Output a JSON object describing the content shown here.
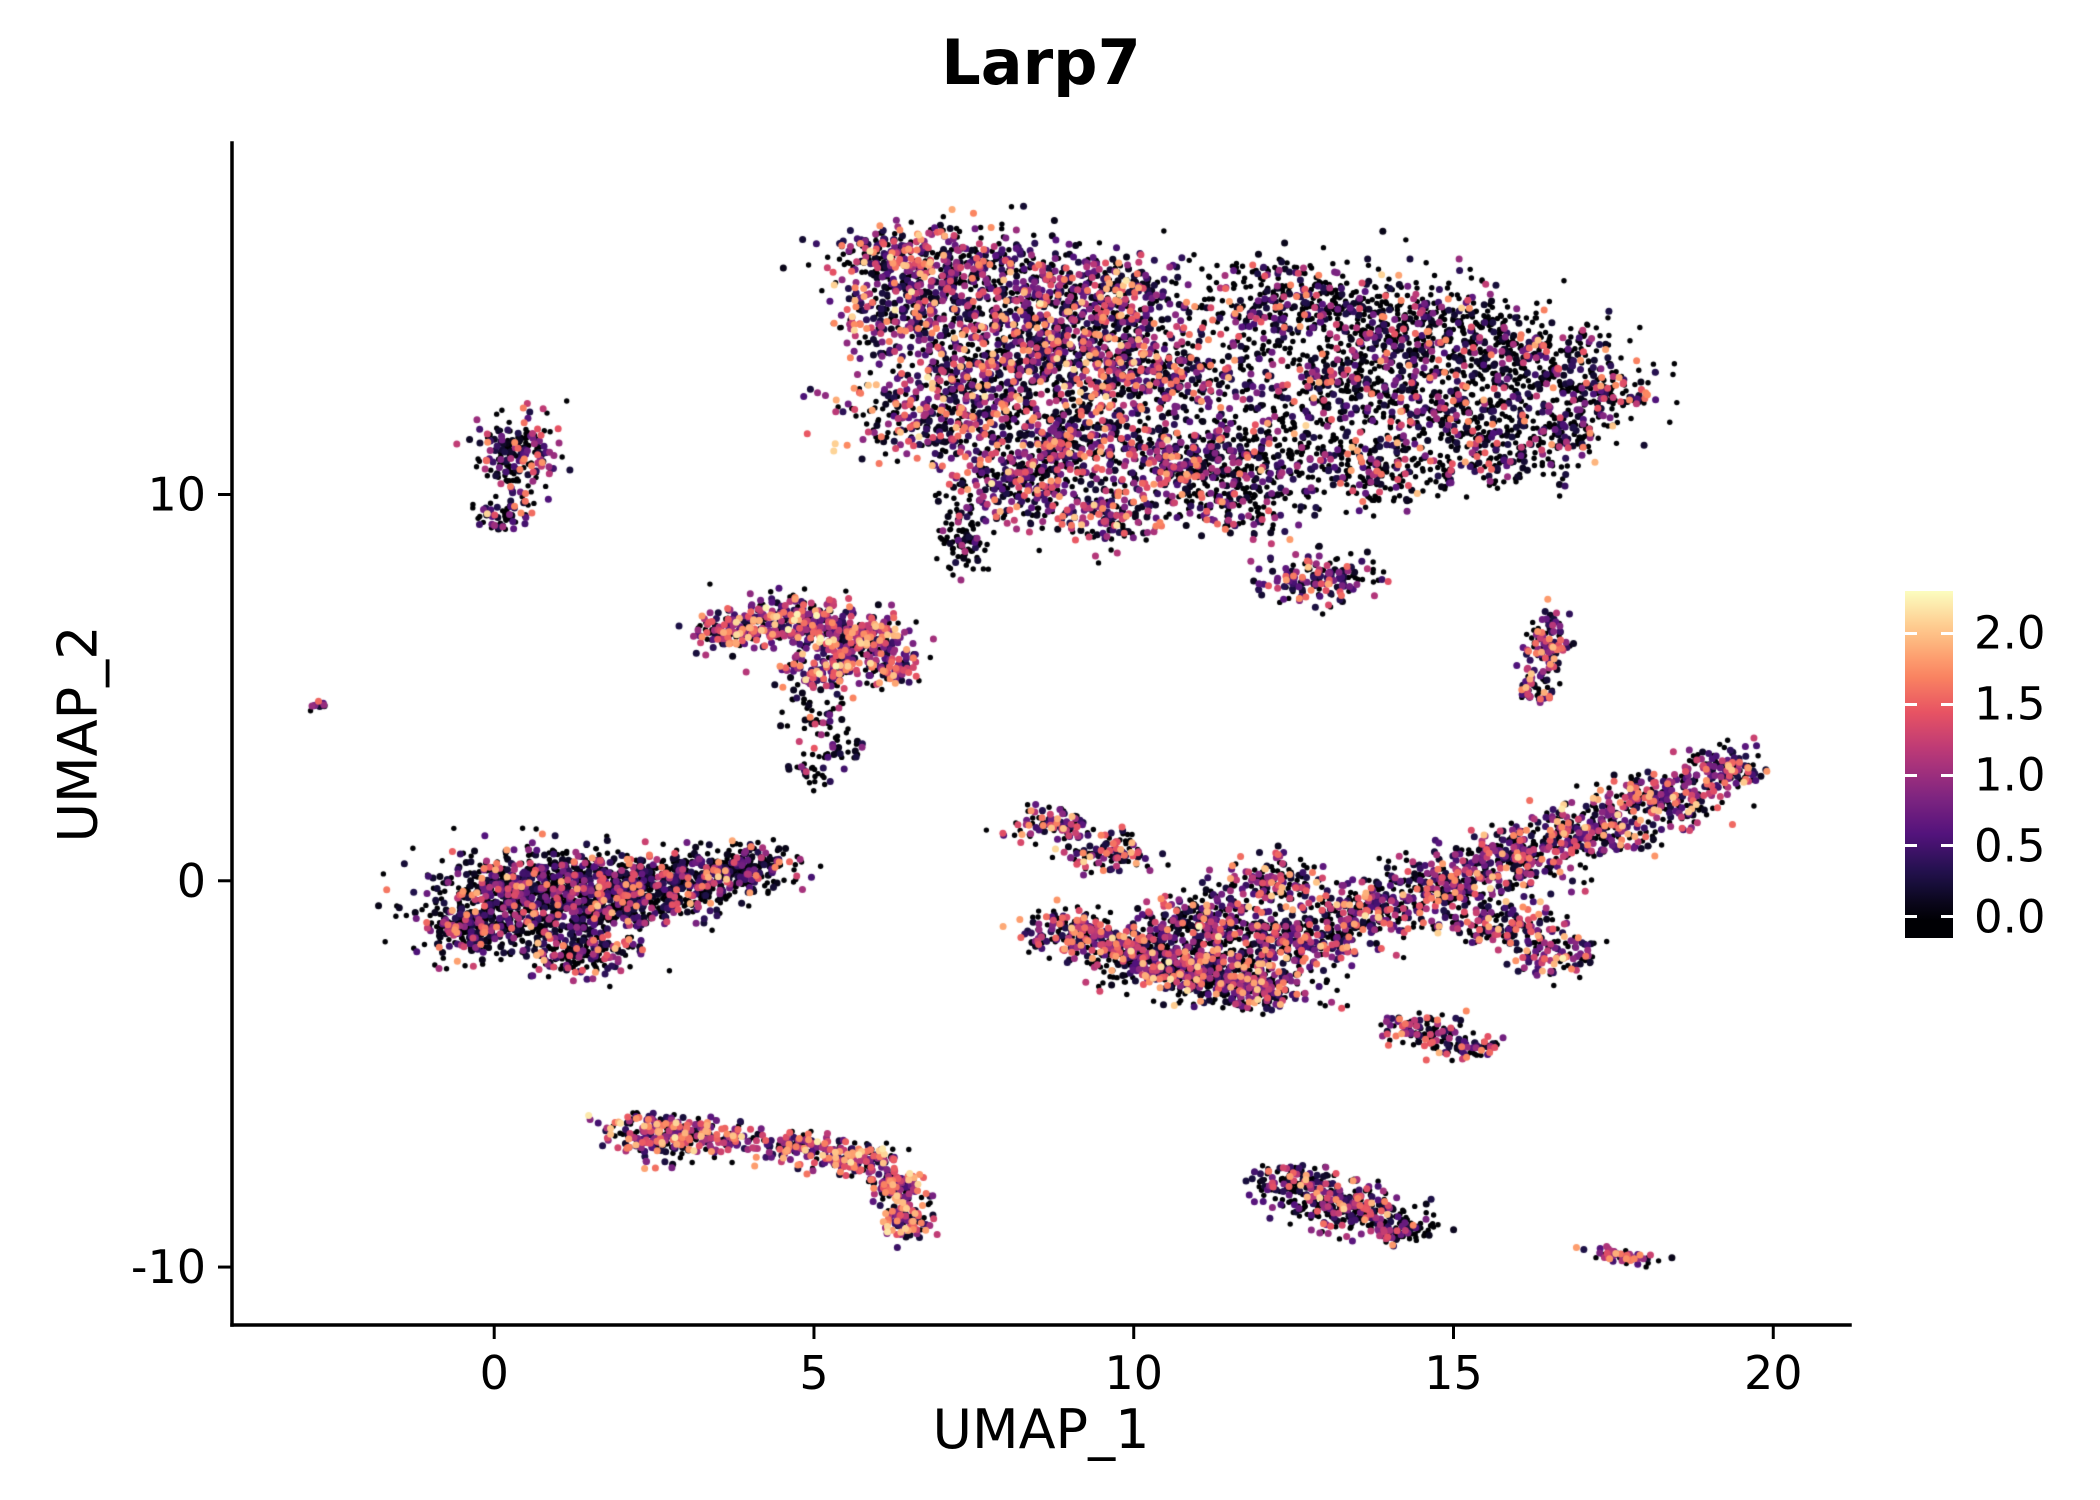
{
  "chart_data": {
    "type": "scatter",
    "title": "Larp7",
    "xlabel": "UMAP_1",
    "ylabel": "UMAP_2",
    "xlim": [
      -4.1,
      21.2
    ],
    "ylim": [
      -11.5,
      19.1
    ],
    "x_ticks": [
      0,
      5,
      10,
      15,
      20
    ],
    "x_tick_labels": [
      "0",
      "5",
      "10",
      "15",
      "20"
    ],
    "y_ticks": [
      10,
      0,
      -10
    ],
    "y_tick_labels": [
      "10",
      "0",
      "-10"
    ],
    "grid": false,
    "background": "#ffffff",
    "axis_color": "#000000",
    "text_color": "#000000",
    "point_radius": {
      "zero": 2.7,
      "expressed": 3.5
    },
    "legend": {
      "position": "right",
      "ticks": [
        2.0,
        1.5,
        1.0,
        0.5,
        0.0
      ],
      "tick_labels": [
        "2.0",
        "1.5",
        "1.0",
        "0.5",
        "0.0"
      ],
      "vmin": -0.15,
      "vmax": 2.3,
      "value_max": 2.3,
      "colormap": "magma",
      "stops": [
        "#000004",
        "#1d1147",
        "#51127c",
        "#822681",
        "#b73779",
        "#e75263",
        "#fc8961",
        "#fec488",
        "#fcfdbf"
      ]
    },
    "clusters": [
      {
        "name": "top-left-dense",
        "p0": 0.36,
        "gamma": 1.6,
        "scale": 1.9,
        "blobs": [
          [
            7.2,
            15.8,
            1.6,
            0.95,
            480
          ],
          [
            9.3,
            15.1,
            1.4,
            1.0,
            420
          ],
          [
            8.3,
            13.6,
            1.7,
            1.2,
            650
          ],
          [
            10.3,
            13.0,
            1.3,
            1.0,
            380
          ],
          [
            7.0,
            12.1,
            1.2,
            1.0,
            360
          ],
          [
            9.0,
            11.3,
            1.3,
            1.0,
            400
          ],
          [
            10.8,
            10.8,
            1.0,
            0.9,
            260
          ],
          [
            8.1,
            10.1,
            0.9,
            0.8,
            220
          ],
          [
            9.6,
            9.4,
            0.8,
            0.65,
            150
          ],
          [
            6.3,
            14.6,
            0.8,
            0.8,
            170
          ],
          [
            6.1,
            16.2,
            0.7,
            0.5,
            120
          ]
        ]
      },
      {
        "name": "top-left-tail",
        "p0": 0.75,
        "gamma": 2.5,
        "scale": 1.2,
        "blobs": [
          [
            7.35,
            8.85,
            0.3,
            0.75,
            90
          ]
        ]
      },
      {
        "name": "top-right-sparse",
        "p0": 0.6,
        "gamma": 2.0,
        "scale": 1.8,
        "blobs": [
          [
            12.6,
            14.9,
            1.6,
            1.1,
            420
          ],
          [
            14.5,
            14.3,
            1.6,
            1.0,
            400
          ],
          [
            16.3,
            13.4,
            1.3,
            0.9,
            280
          ],
          [
            17.4,
            12.6,
            0.7,
            0.55,
            120
          ],
          [
            13.3,
            12.9,
            1.3,
            1.0,
            300
          ],
          [
            15.1,
            12.1,
            1.3,
            0.9,
            260
          ],
          [
            12.2,
            11.1,
            1.2,
            0.9,
            240
          ],
          [
            13.9,
            10.6,
            1.1,
            0.8,
            210
          ],
          [
            11.6,
            9.7,
            0.9,
            0.7,
            150
          ],
          [
            15.9,
            11.0,
            0.9,
            0.7,
            140
          ],
          [
            16.9,
            11.6,
            0.6,
            0.5,
            80
          ]
        ]
      },
      {
        "name": "mid-appendage",
        "p0": 0.45,
        "gamma": 1.6,
        "scale": 1.9,
        "blobs": [
          [
            12.9,
            7.85,
            0.75,
            0.55,
            160
          ]
        ]
      },
      {
        "name": "left-small",
        "p0": 0.4,
        "gamma": 1.7,
        "scale": 1.8,
        "blobs": [
          [
            0.35,
            11.0,
            0.55,
            0.85,
            190
          ],
          [
            0.15,
            9.5,
            0.35,
            0.45,
            60
          ]
        ]
      },
      {
        "name": "far-left-dot",
        "p0": 0.3,
        "gamma": 1.0,
        "scale": 1.6,
        "blobs": [
          [
            -2.75,
            4.55,
            0.13,
            0.12,
            10
          ]
        ]
      },
      {
        "name": "mid-left-warm",
        "p0": 0.24,
        "gamma": 1.15,
        "scale": 2.0,
        "blobs": [
          [
            4.6,
            6.7,
            0.95,
            0.55,
            290
          ],
          [
            5.7,
            6.3,
            0.7,
            0.5,
            190
          ],
          [
            3.7,
            6.4,
            0.5,
            0.4,
            90
          ],
          [
            5.2,
            5.5,
            0.7,
            0.45,
            140
          ],
          [
            6.2,
            5.6,
            0.45,
            0.4,
            80
          ]
        ]
      },
      {
        "name": "mid-left-trail",
        "p0": 0.62,
        "gamma": 2.0,
        "scale": 1.6,
        "blobs": [
          [
            5.1,
            4.4,
            0.45,
            0.55,
            48
          ],
          [
            5.4,
            3.4,
            0.35,
            0.5,
            36
          ],
          [
            5.0,
            2.8,
            0.3,
            0.3,
            22
          ]
        ]
      },
      {
        "name": "left-big-dark",
        "p0": 0.52,
        "gamma": 2.1,
        "scale": 1.8,
        "blobs": [
          [
            0.6,
            -0.4,
            1.35,
            1.0,
            850
          ],
          [
            2.0,
            -0.3,
            1.1,
            0.9,
            560
          ],
          [
            3.2,
            0.1,
            0.9,
            0.6,
            280
          ],
          [
            4.1,
            0.4,
            0.6,
            0.4,
            140
          ],
          [
            -0.4,
            -1.3,
            0.55,
            0.65,
            170
          ],
          [
            1.3,
            -1.9,
            0.8,
            0.5,
            190
          ]
        ]
      },
      {
        "name": "center-elongated",
        "p0": 0.4,
        "gamma": 1.4,
        "scale": 1.9,
        "blobs": [
          [
            8.75,
            1.5,
            0.6,
            0.35,
            95
          ],
          [
            9.6,
            0.7,
            0.6,
            0.45,
            110
          ],
          [
            9.0,
            -1.3,
            0.6,
            0.5,
            150
          ],
          [
            9.9,
            -1.8,
            0.8,
            0.6,
            260
          ],
          [
            10.9,
            -2.3,
            0.9,
            0.65,
            360
          ],
          [
            11.9,
            -2.7,
            0.8,
            0.55,
            280
          ],
          [
            11.2,
            -1.0,
            0.8,
            0.6,
            240
          ],
          [
            12.6,
            -1.5,
            0.9,
            0.6,
            260
          ],
          [
            13.7,
            -0.8,
            0.95,
            0.6,
            260
          ],
          [
            14.9,
            -0.1,
            0.9,
            0.6,
            250
          ],
          [
            16.0,
            0.6,
            0.9,
            0.6,
            240
          ],
          [
            17.1,
            1.3,
            0.9,
            0.6,
            230
          ],
          [
            18.2,
            2.1,
            0.85,
            0.55,
            210
          ],
          [
            19.2,
            2.9,
            0.6,
            0.45,
            140
          ],
          [
            15.8,
            -1.1,
            0.7,
            0.5,
            150
          ],
          [
            16.6,
            -1.9,
            0.55,
            0.45,
            100
          ],
          [
            12.2,
            0.0,
            0.6,
            0.5,
            130
          ]
        ]
      },
      {
        "name": "right-vertical",
        "p0": 0.33,
        "gamma": 1.3,
        "scale": 1.9,
        "blobs": [
          [
            16.45,
            6.1,
            0.3,
            0.75,
            105
          ],
          [
            16.25,
            5.0,
            0.25,
            0.35,
            45
          ]
        ]
      },
      {
        "name": "small-below-center",
        "p0": 0.42,
        "gamma": 1.6,
        "scale": 1.8,
        "blobs": [
          [
            14.5,
            -3.9,
            0.55,
            0.35,
            85
          ],
          [
            15.2,
            -4.3,
            0.5,
            0.3,
            65
          ]
        ]
      },
      {
        "name": "bottom-left-crescent",
        "p0": 0.28,
        "gamma": 1.1,
        "scale": 2.0,
        "blobs": [
          [
            2.55,
            -6.6,
            0.65,
            0.5,
            230
          ],
          [
            3.6,
            -6.7,
            0.6,
            0.35,
            85
          ],
          [
            4.8,
            -6.9,
            0.6,
            0.35,
            115
          ],
          [
            5.7,
            -7.2,
            0.55,
            0.35,
            145
          ],
          [
            6.3,
            -7.9,
            0.35,
            0.45,
            125
          ],
          [
            6.45,
            -8.8,
            0.3,
            0.4,
            105
          ]
        ]
      },
      {
        "name": "bottom-middle",
        "p0": 0.48,
        "gamma": 1.6,
        "scale": 1.8,
        "blobs": [
          [
            12.5,
            -7.9,
            0.6,
            0.45,
            150
          ],
          [
            13.3,
            -8.5,
            0.75,
            0.5,
            230
          ],
          [
            14.2,
            -9.0,
            0.5,
            0.35,
            85
          ]
        ]
      },
      {
        "name": "bottom-right-tiny",
        "p0": 0.22,
        "gamma": 1.0,
        "scale": 1.7,
        "blobs": [
          [
            17.6,
            -9.7,
            0.45,
            0.18,
            55,
            -12
          ]
        ]
      }
    ]
  }
}
